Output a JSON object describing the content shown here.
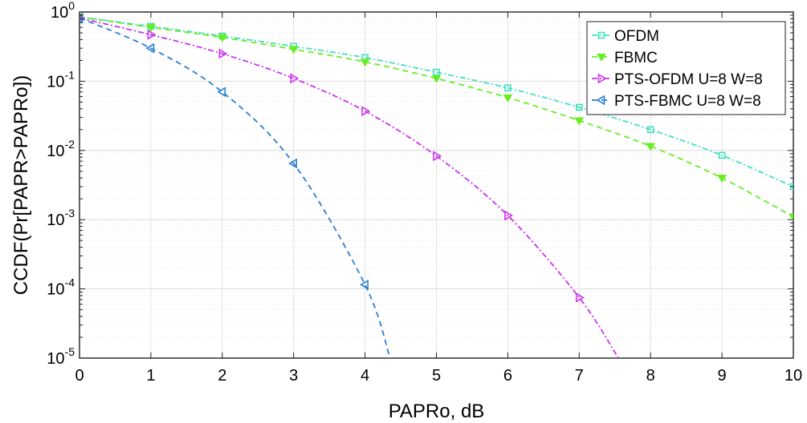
{
  "chart_data": {
    "type": "line",
    "xlabel": "PAPRo, dB",
    "ylabel": "CCDF(Pr[PAPR>PAPRo])",
    "xlim": [
      0,
      10
    ],
    "ylim": [
      1e-05,
      1
    ],
    "yscale": "log",
    "grid": true,
    "legend_position": "top-right",
    "x_ticks": [
      "0",
      "1",
      "2",
      "3",
      "4",
      "5",
      "6",
      "7",
      "8",
      "9",
      "10"
    ],
    "y_ticks": [
      {
        "base": "10",
        "exp": "0"
      },
      {
        "base": "10",
        "exp": "-1"
      },
      {
        "base": "10",
        "exp": "-2"
      },
      {
        "base": "10",
        "exp": "-3"
      },
      {
        "base": "10",
        "exp": "-4"
      },
      {
        "base": "10",
        "exp": "-5"
      }
    ],
    "series": [
      {
        "name": "OFDM",
        "color": "#40e0c0",
        "dash": "dashdot",
        "marker": "square",
        "x": [
          0,
          1,
          2,
          3,
          4,
          5,
          6,
          7,
          8,
          9,
          10
        ],
        "y": [
          0.85,
          0.62,
          0.45,
          0.32,
          0.22,
          0.135,
          0.08,
          0.042,
          0.02,
          0.0085,
          0.003
        ]
      },
      {
        "name": "FBMC",
        "color": "#66ee22",
        "dash": "dashed",
        "marker": "triangle-down",
        "x": [
          0,
          1,
          2,
          3,
          4,
          5,
          6,
          7,
          8,
          9,
          10
        ],
        "y": [
          0.85,
          0.6,
          0.43,
          0.29,
          0.19,
          0.11,
          0.058,
          0.027,
          0.0115,
          0.004,
          0.0011
        ]
      },
      {
        "name": "PTS-OFDM U=8 W=8",
        "color": "#cc33ee",
        "dash": "dashdot",
        "marker": "triangle-right",
        "x": [
          0,
          1,
          2,
          3,
          4,
          5,
          6,
          7,
          7.55
        ],
        "y": [
          0.82,
          0.47,
          0.25,
          0.11,
          0.037,
          0.0083,
          0.00115,
          7.5e-05,
          1e-05
        ],
        "marker_count": 8
      },
      {
        "name": "PTS-FBMC U=8 W=8",
        "color": "#2a7fd4",
        "dash": "dashed",
        "marker": "triangle-left",
        "x": [
          0,
          1,
          2,
          3,
          4,
          4.35
        ],
        "y": [
          0.82,
          0.3,
          0.07,
          0.0065,
          0.000115,
          1e-05
        ],
        "marker_count": 5
      }
    ]
  }
}
